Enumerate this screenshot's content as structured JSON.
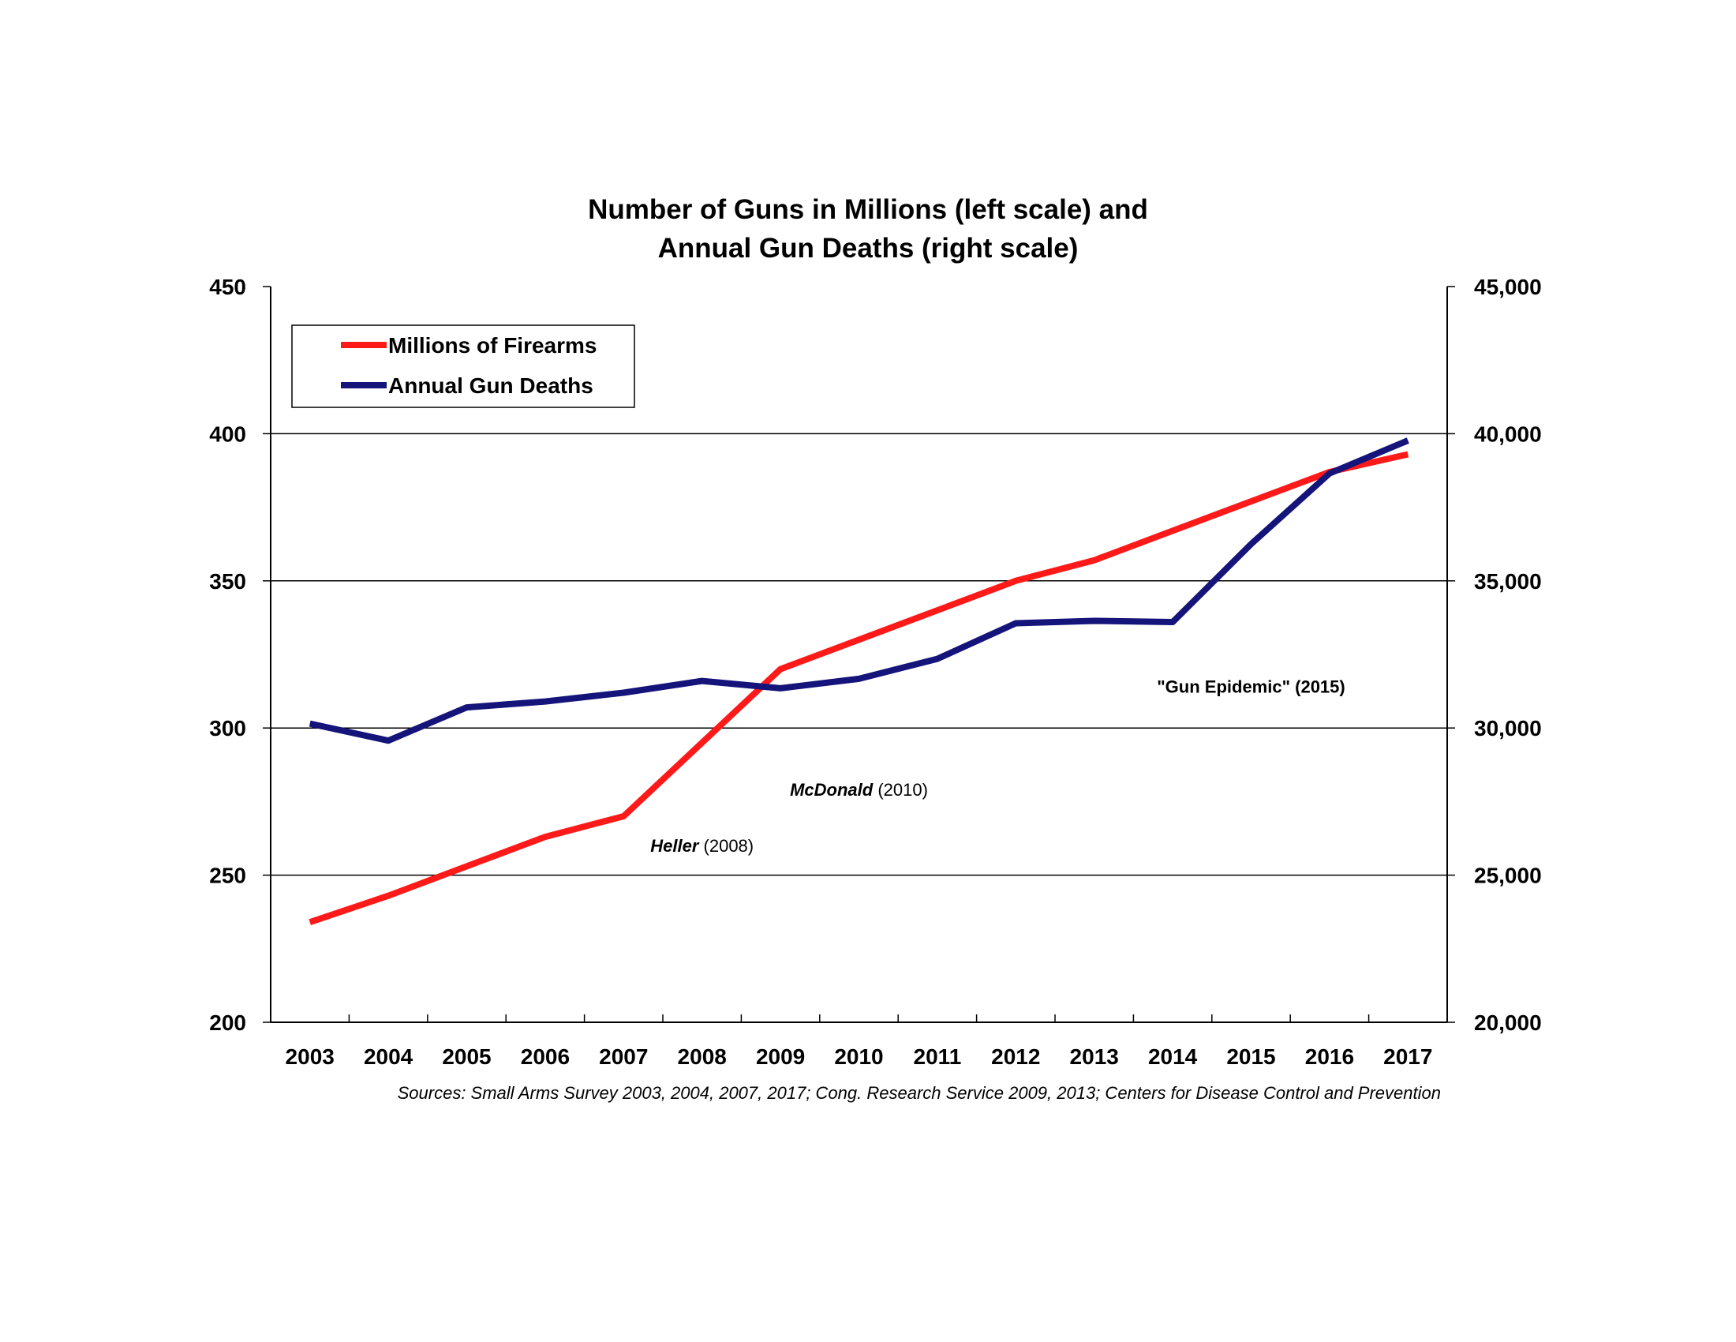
{
  "chart_data": {
    "type": "line",
    "title_line1": "Number of Guns in Millions (left scale) and",
    "title_line2": "Annual Gun Deaths (right scale)",
    "x": [
      "2003",
      "2004",
      "2005",
      "2006",
      "2007",
      "2008",
      "2009",
      "2010",
      "2011",
      "2012",
      "2013",
      "2014",
      "2015",
      "2016",
      "2017"
    ],
    "y_left": {
      "range": [
        200,
        450
      ],
      "ticks": [
        "200",
        "250",
        "300",
        "350",
        "400",
        "450"
      ]
    },
    "y_right": {
      "range": [
        20000,
        45000
      ],
      "ticks": [
        "20,000",
        "25,000",
        "30,000",
        "35,000",
        "40,000",
        "45,000"
      ]
    },
    "grid": true,
    "legend_position": "top-left",
    "series": [
      {
        "name": "Millions of Firearms",
        "axis": "left",
        "color": "#ff1a1a",
        "values": [
          234,
          243,
          253,
          263,
          270,
          295,
          320,
          330,
          340,
          350,
          357,
          367,
          377,
          387,
          393
        ]
      },
      {
        "name": "Annual Gun Deaths",
        "axis": "right",
        "color": "#14147a",
        "values": [
          30150,
          29570,
          30700,
          30900,
          31200,
          31600,
          31350,
          31670,
          32350,
          33560,
          33640,
          33600,
          36250,
          38650,
          39770
        ]
      }
    ],
    "annotations": [
      {
        "italic": "Heller",
        "rest": " (2008)",
        "x": "2008",
        "y": 258
      },
      {
        "italic": "McDonald",
        "rest": " (2010)",
        "x": "2010",
        "y": 277
      },
      {
        "italic": "",
        "rest": "\"Gun Epidemic\" (2015)",
        "x": "2015",
        "y": 312
      }
    ],
    "source": "Sources:  Small Arms Survey 2003, 2004, 2007, 2017; Cong. Research Service 2009, 2013; Centers for Disease Control and Prevention"
  }
}
